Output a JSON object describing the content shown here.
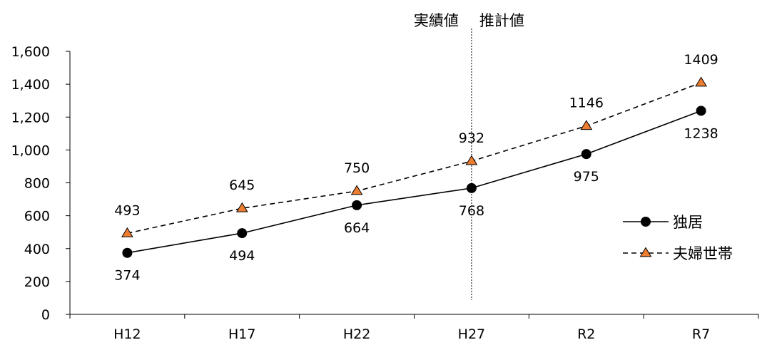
{
  "chart_data": {
    "type": "line",
    "categories": [
      "H12",
      "H17",
      "H22",
      "H27",
      "R2",
      "R7"
    ],
    "series": [
      {
        "name": "独居",
        "values": [
          374,
          494,
          664,
          768,
          975,
          1238
        ],
        "color": "#000000",
        "marker": "circle",
        "line_style": "solid",
        "label_position": "below"
      },
      {
        "name": "夫婦世帯",
        "values": [
          493,
          645,
          750,
          932,
          1146,
          1409
        ],
        "color": "#000000",
        "marker": "triangle",
        "marker_fill": "#ED7D31",
        "line_style": "dashed",
        "label_position": "above"
      }
    ],
    "y_tick_labels": [
      "0",
      "200",
      "400",
      "600",
      "800",
      "1,000",
      "1,200",
      "1,400",
      "1,600"
    ],
    "ylim": [
      0,
      1600
    ],
    "y_tick_step": 200,
    "grid": false,
    "legend_position": "right",
    "annotations": {
      "divider_after_category": "H27",
      "left_text": "実績値",
      "right_text": "推計値"
    }
  }
}
